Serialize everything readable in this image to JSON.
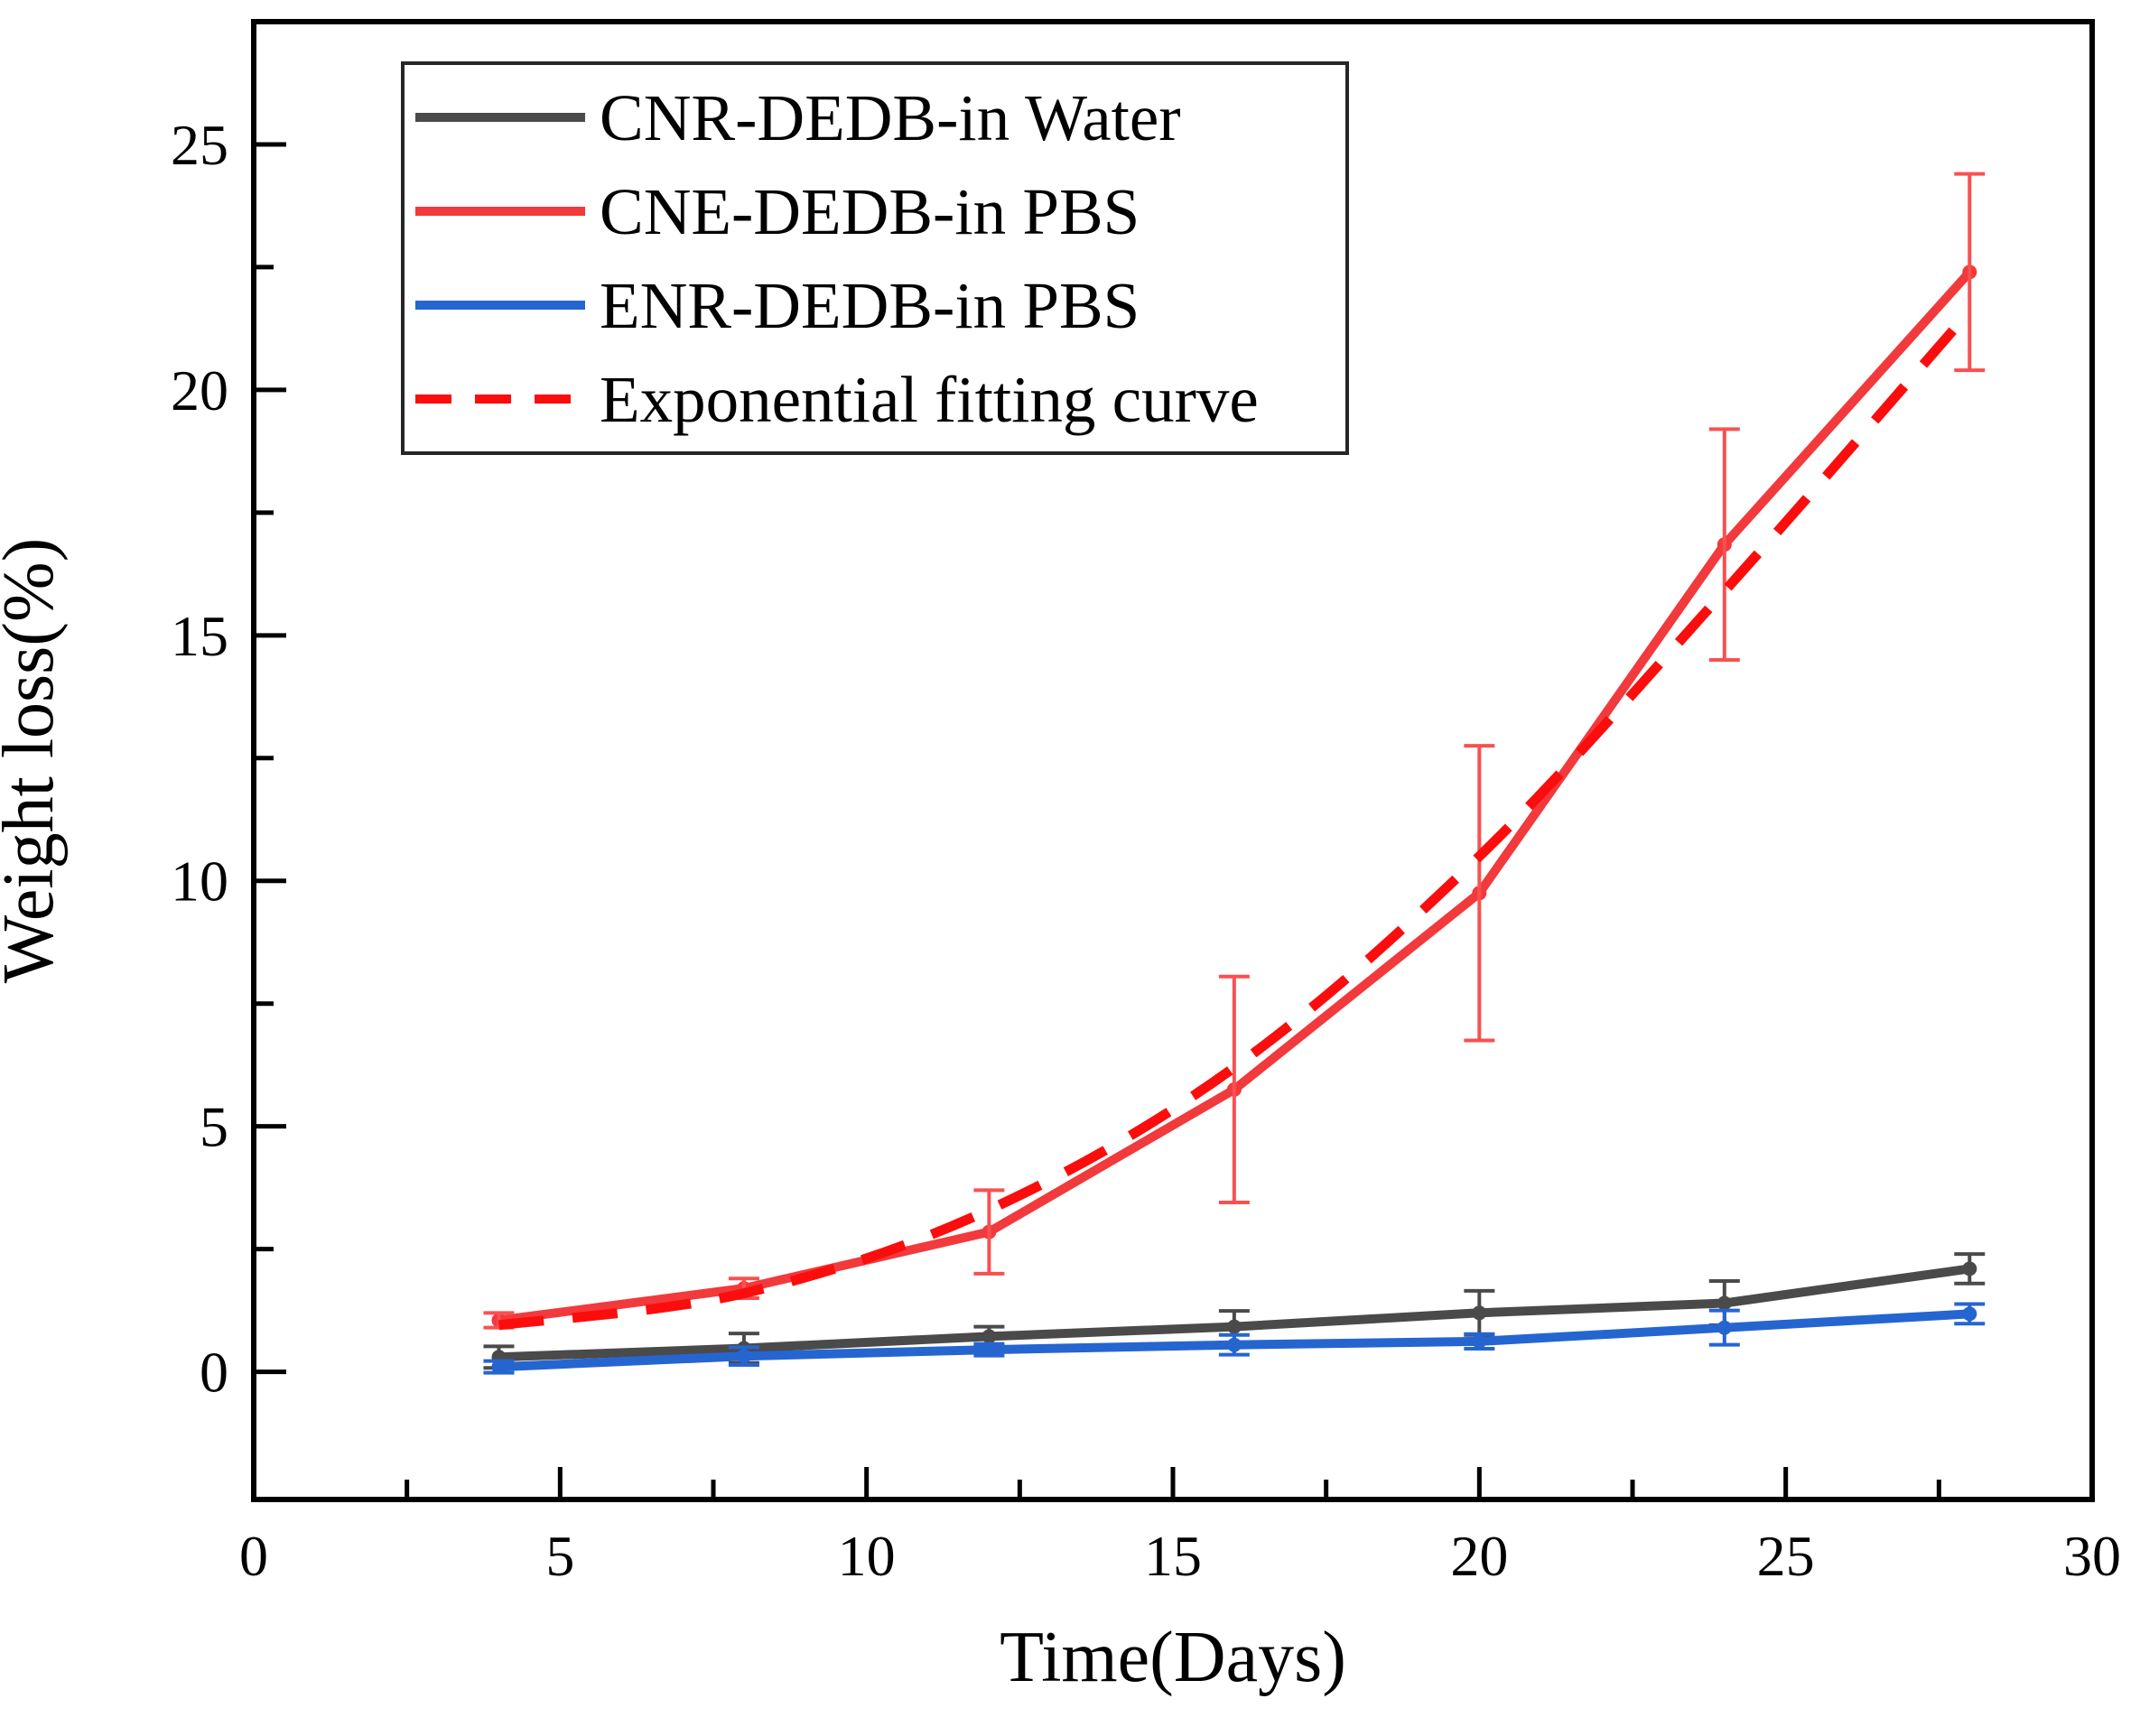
{
  "figure": {
    "background": "#ffffff"
  },
  "chart_data": {
    "type": "line",
    "title": "",
    "xlabel": "Time(Days)",
    "ylabel": "Weight loss(%)",
    "xlim": [
      0,
      30
    ],
    "ylim": [
      -2.6,
      27.5
    ],
    "grid": false,
    "legend_position": "upper-left",
    "x_major_ticks": [
      "0",
      "5",
      "10",
      "15",
      "20",
      "25",
      "30"
    ],
    "x_major_tick_values": [
      0,
      5,
      10,
      15,
      20,
      25,
      30
    ],
    "x_minor_tick_values": [
      2.5,
      7.5,
      12.5,
      17.5,
      22.5,
      27.5
    ],
    "y_major_ticks": [
      "0",
      "5",
      "10",
      "15",
      "20",
      "25"
    ],
    "y_major_tick_values": [
      0,
      5,
      10,
      15,
      20,
      25
    ],
    "y_minor_tick_values": [
      2.5,
      7.5,
      12.5,
      17.5,
      22.5
    ],
    "x": [
      4,
      8,
      12,
      16,
      20,
      24,
      28
    ],
    "series": [
      {
        "name": "CNR-DEDB-in Water",
        "style": "solid",
        "color": "#4a4a4a",
        "error_color": "#4a4a4a",
        "values": [
          0.3,
          0.48,
          0.72,
          0.92,
          1.2,
          1.4,
          2.1
        ],
        "errors": [
          0.22,
          0.3,
          0.2,
          0.32,
          0.45,
          0.45,
          0.3
        ]
      },
      {
        "name": "CNE-DEDB-in PBS",
        "style": "solid",
        "color": "#f2393c",
        "error_color": "#f95050",
        "values": [
          1.05,
          1.7,
          2.85,
          5.75,
          9.75,
          16.85,
          22.4
        ],
        "errors": [
          0.15,
          0.2,
          0.85,
          2.3,
          3.0,
          2.35,
          2.0
        ]
      },
      {
        "name": "ENR-DEDB-in PBS",
        "style": "solid",
        "color": "#2565d0",
        "error_color": "#2565d0",
        "values": [
          0.1,
          0.32,
          0.45,
          0.55,
          0.62,
          0.9,
          1.18
        ],
        "errors": [
          0.12,
          0.18,
          0.12,
          0.2,
          0.15,
          0.35,
          0.2
        ]
      },
      {
        "name": "Exponential fitting curve",
        "style": "dashed",
        "color": "#fc0d0d",
        "error_color": null,
        "values": [
          0.95,
          1.6,
          3.3,
          6.2,
          10.5,
          15.9,
          21.6
        ],
        "errors": null
      }
    ]
  }
}
